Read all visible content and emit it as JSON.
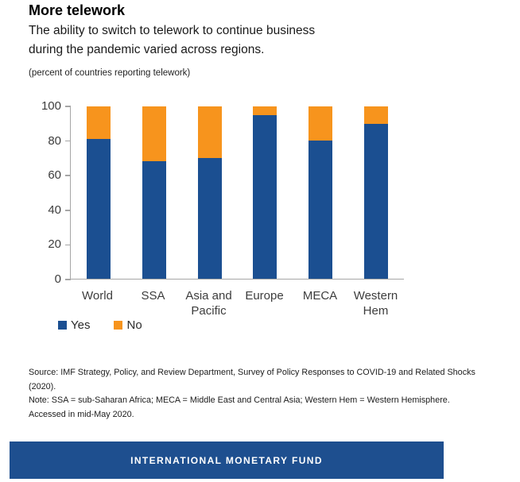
{
  "page": {
    "title": "More telework",
    "subtitle_lines": [
      "The ability to switch to telework to continue business",
      "during the pandemic varied across regions."
    ],
    "unit_note": "(percent of countries reporting telework)"
  },
  "chart_data": {
    "type": "bar",
    "stacked": true,
    "title": "More telework",
    "ylabel": "",
    "xlabel": "",
    "categories": [
      "World",
      "SSA",
      "Asia and Pacific",
      "Europe",
      "MECA",
      "Western Hem"
    ],
    "series": [
      {
        "name": "Yes",
        "color": "#1B4F91",
        "values": [
          81,
          68,
          70,
          95,
          80,
          90
        ]
      },
      {
        "name": "No",
        "color": "#F7941D",
        "values": [
          19,
          32,
          30,
          5,
          20,
          10
        ]
      }
    ],
    "ylim": [
      0,
      100
    ],
    "y_ticks": [
      0,
      20,
      40,
      60,
      80,
      100
    ],
    "grid": false,
    "legend_position": "bottom-left",
    "axis_color": "#a6a6a6"
  },
  "footer": {
    "lines": [
      "Source: IMF Strategy, Policy, and Review Department, Survey of Policy Responses to COVID-19 and Related Shocks",
      "(2020).",
      "Note: SSA = sub-Saharan Africa; MECA = Middle East and Central Asia; Western Hem = Western Hemisphere.",
      "Accessed in mid-May 2020."
    ]
  },
  "banner": {
    "label": "INTERNATIONAL MONETARY FUND",
    "background": "#1E4F8F",
    "text_color": "#FFFFFF"
  }
}
